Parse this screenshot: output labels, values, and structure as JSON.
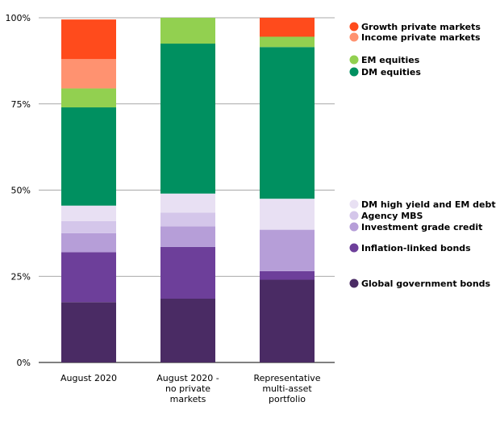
{
  "chart_data": {
    "type": "bar",
    "stacked": true,
    "categories": [
      [
        "August 2020"
      ],
      [
        "August 2020 -",
        "no private",
        "markets"
      ],
      [
        "Representative",
        "multi-asset",
        "portfolio"
      ]
    ],
    "ylim": [
      0,
      100
    ],
    "yticks": [
      0,
      25,
      50,
      75,
      100
    ],
    "ytick_labels": [
      "0%",
      "25%",
      "50%",
      "75%",
      "100%"
    ],
    "grid": true,
    "legend_position": "right",
    "series": [
      {
        "name": "Global government bonds",
        "color": "#4a2b64",
        "values": [
          17.5,
          18.5,
          24
        ]
      },
      {
        "name": "Inflation-linked bonds",
        "color": "#6d3f9a",
        "values": [
          14.5,
          15,
          2.5
        ]
      },
      {
        "name": "Investment grade credit",
        "color": "#b69ed8",
        "values": [
          5.5,
          6,
          12
        ]
      },
      {
        "name": "Agency MBS",
        "color": "#d4c6ea",
        "values": [
          3.5,
          4,
          0
        ]
      },
      {
        "name": "DM high yield and EM debt",
        "color": "#e8e0f3",
        "values": [
          4.5,
          5.5,
          9
        ]
      },
      {
        "name": "DM equities",
        "color": "#009060",
        "values": [
          28.5,
          43.5,
          44
        ]
      },
      {
        "name": "EM equities",
        "color": "#92d050",
        "values": [
          5.5,
          7.5,
          3
        ]
      },
      {
        "name": "Income private markets",
        "color": "#ff9270",
        "values": [
          8.5,
          0,
          0
        ]
      },
      {
        "name": "Growth private markets",
        "color": "#ff4b1c",
        "values": [
          11.5,
          0,
          5.5
        ]
      }
    ],
    "legend_order": [
      "Growth private markets",
      "Income private markets",
      "EM equities",
      "DM equities",
      "DM high yield and EM debt",
      "Agency MBS",
      "Investment grade credit",
      "Inflation-linked bonds",
      "Global government bonds"
    ]
  }
}
